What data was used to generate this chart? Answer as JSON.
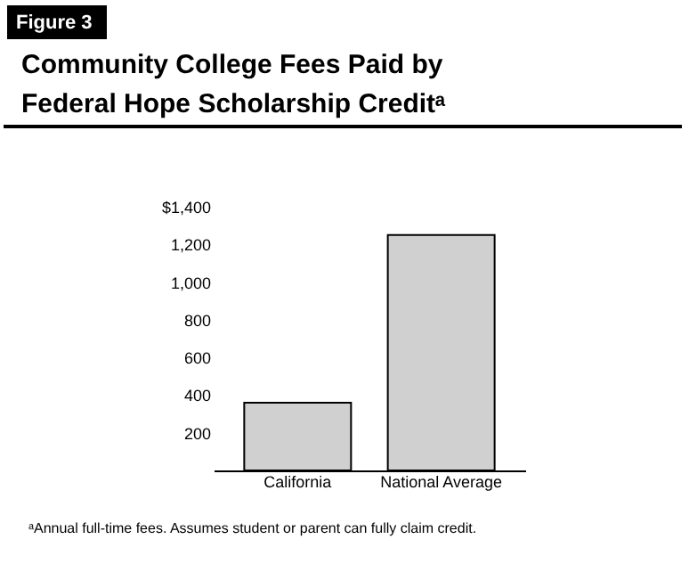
{
  "chart_data": {
    "type": "bar",
    "title": "Community College Fees Paid by Federal Hope Scholarship Creditᵃ",
    "annotations": [
      "Figure 3",
      "ᵃAnnual full-time fees. Assumes student or parent can fully claim credit."
    ],
    "categories": [
      "California",
      "National Average"
    ],
    "values": [
      360,
      1250
    ],
    "color": "#d0d0d0",
    "ylim": [
      0,
      1400
    ],
    "yticks": [
      200,
      400,
      600,
      800,
      {
        "value": 1000,
        "label": "1,000"
      },
      {
        "value": 1200,
        "label": "1,200"
      },
      {
        "value": 1400,
        "label": "$1,400"
      }
    ],
    "grid": false
  }
}
